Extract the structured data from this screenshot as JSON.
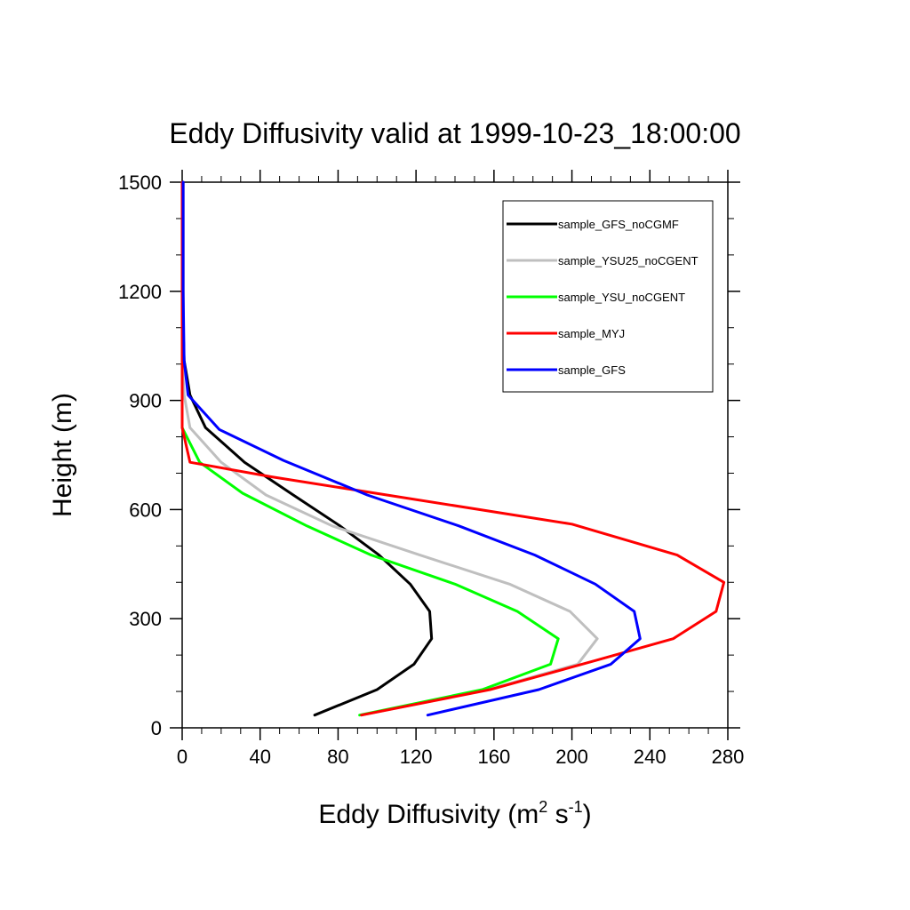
{
  "chart_data": {
    "type": "line",
    "title": "Eddy Diffusivity valid at 1999-10-23_18:00:00",
    "xlabel": {
      "base": "Eddy Diffusivity (m",
      "sup1": "2",
      "mid": " s",
      "sup2": "-1",
      "end": ")"
    },
    "ylabel": "Height (m)",
    "xlim": [
      0,
      280
    ],
    "ylim": [
      0,
      1500
    ],
    "xticks": [
      0,
      40,
      80,
      120,
      160,
      200,
      240,
      280
    ],
    "yticks": [
      0,
      300,
      600,
      900,
      1200,
      1500
    ],
    "legend_position": "top-right",
    "series": [
      {
        "name": "sample_GFS_noCGMF",
        "color": "#000000",
        "x": [
          68,
          100,
          119,
          128,
          127,
          117,
          101,
          81,
          57,
          32,
          12,
          4,
          1,
          0.5,
          0.5,
          0.5
        ],
        "y": [
          35,
          105,
          175,
          245,
          320,
          395,
          475,
          555,
          640,
          730,
          825,
          915,
          1010,
          1100,
          1300,
          1500
        ]
      },
      {
        "name": "sample_YSU25_noCGENT",
        "color": "#bfbfbf",
        "x": [
          92,
          157,
          203,
          213,
          199,
          168,
          122,
          77,
          43,
          20,
          4,
          1,
          0,
          0,
          0
        ],
        "y": [
          35,
          105,
          175,
          245,
          320,
          395,
          475,
          555,
          640,
          730,
          825,
          915,
          1010,
          1200,
          1500
        ]
      },
      {
        "name": "sample_YSU_noCGENT",
        "color": "#00ff00",
        "x": [
          91,
          154,
          189,
          193,
          172,
          140,
          97,
          64,
          31,
          9,
          0,
          0,
          0,
          0
        ],
        "y": [
          35,
          105,
          175,
          245,
          320,
          395,
          475,
          555,
          645,
          730,
          825,
          915,
          1200,
          1500
        ]
      },
      {
        "name": "sample_MYJ",
        "color": "#ff0000",
        "x": [
          92,
          158,
          212,
          252,
          274,
          278,
          254,
          200,
          46,
          4,
          0,
          0,
          0
        ],
        "y": [
          35,
          105,
          185,
          245,
          320,
          400,
          475,
          560,
          690,
          730,
          825,
          1200,
          1500
        ]
      },
      {
        "name": "sample_GFS",
        "color": "#0000ff",
        "x": [
          126,
          183,
          220,
          235,
          232,
          212,
          181,
          142,
          95,
          52,
          19,
          3,
          1,
          0.5,
          0.5
        ],
        "y": [
          35,
          105,
          175,
          245,
          320,
          395,
          475,
          555,
          640,
          735,
          820,
          915,
          1010,
          1200,
          1500
        ]
      }
    ]
  }
}
